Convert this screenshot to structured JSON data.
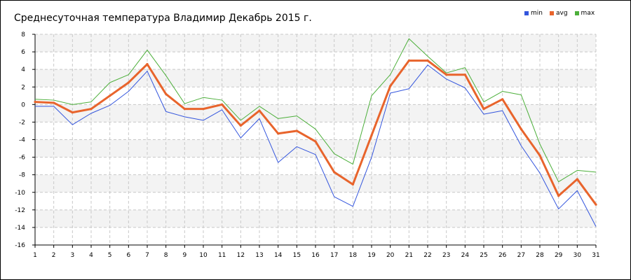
{
  "chart_data": {
    "type": "line",
    "title": "Среднесуточная температура Владимир  Декабрь 2015 г.",
    "xlabel": "",
    "ylabel": "",
    "x": [
      1,
      2,
      3,
      4,
      5,
      6,
      7,
      8,
      9,
      10,
      11,
      12,
      13,
      14,
      15,
      16,
      17,
      18,
      19,
      20,
      21,
      22,
      23,
      24,
      25,
      26,
      27,
      28,
      29,
      30,
      31
    ],
    "ylim": [
      -16,
      8
    ],
    "yticks": [
      8,
      6,
      4,
      2,
      0,
      -2,
      -4,
      -6,
      -8,
      -10,
      -12,
      -14,
      -16
    ],
    "grid": true,
    "legend_position": "top-right",
    "series": [
      {
        "name": "min",
        "color": "#3355dd",
        "values": [
          -0.2,
          -0.2,
          -2.3,
          -1.0,
          -0.1,
          1.5,
          3.8,
          -0.8,
          -1.4,
          -1.8,
          -0.6,
          -3.8,
          -1.6,
          -6.6,
          -4.8,
          -5.7,
          -10.5,
          -11.6,
          -6.0,
          1.3,
          1.8,
          4.5,
          2.9,
          1.9,
          -1.1,
          -0.7,
          -4.7,
          -7.8,
          -11.9,
          -9.8,
          -13.9
        ]
      },
      {
        "name": "avg",
        "color": "#e8642c",
        "values": [
          0.3,
          0.2,
          -0.9,
          -0.5,
          1.0,
          2.5,
          4.6,
          1.2,
          -0.5,
          -0.5,
          0.0,
          -2.4,
          -0.7,
          -3.3,
          -3.0,
          -4.2,
          -7.7,
          -9.1,
          -3.5,
          2.1,
          5.0,
          5.0,
          3.4,
          3.4,
          -0.5,
          0.6,
          -2.8,
          -5.8,
          -10.4,
          -8.5,
          -11.4
        ]
      },
      {
        "name": "max",
        "color": "#4caf3a",
        "values": [
          0.6,
          0.5,
          0.0,
          0.3,
          2.5,
          3.4,
          6.2,
          3.3,
          0.1,
          0.8,
          0.5,
          -1.8,
          -0.2,
          -1.6,
          -1.3,
          -2.8,
          -5.6,
          -6.8,
          1.0,
          3.4,
          7.5,
          5.5,
          3.6,
          4.2,
          0.3,
          1.5,
          1.1,
          -4.5,
          -8.8,
          -7.5,
          -7.7
        ]
      }
    ]
  }
}
